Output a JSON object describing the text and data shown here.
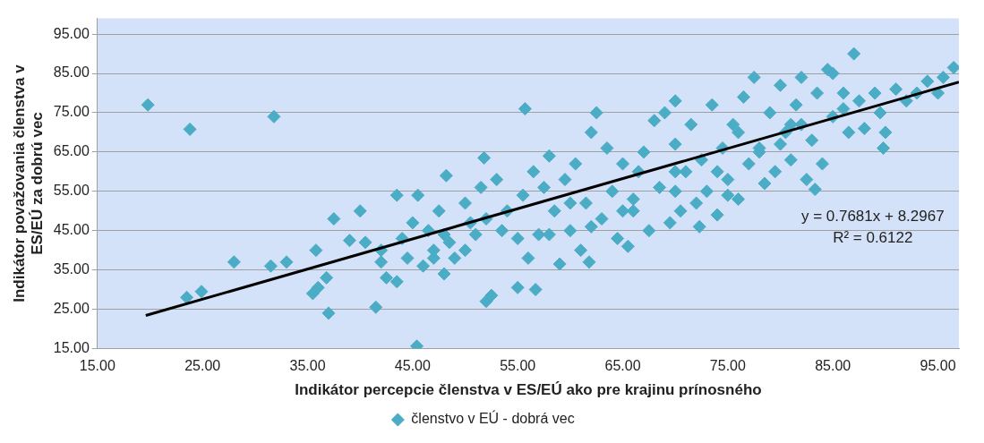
{
  "chart_data": {
    "type": "scatter",
    "xlabel": "Indikátor percepcie členstva v ES/EÚ ako pre krajinu prínosného",
    "ylabel": "Indikátor považovania členstva v ES/EÚ za dobrú vec",
    "annotations": [
      "y = 0.7681x + 8.2967",
      "R² = 0.6122"
    ],
    "xlim": [
      15,
      97
    ],
    "ylim": [
      15,
      99
    ],
    "xticks": [
      {
        "value": 15,
        "label": "15.00"
      },
      {
        "value": 25,
        "label": "25.00"
      },
      {
        "value": 35,
        "label": "35.00"
      },
      {
        "value": 45,
        "label": "45.00"
      },
      {
        "value": 55,
        "label": "55.00"
      },
      {
        "value": 65,
        "label": "65.00"
      },
      {
        "value": 75,
        "label": "75.00"
      },
      {
        "value": 85,
        "label": "85.00"
      },
      {
        "value": 95,
        "label": "95.00"
      }
    ],
    "yticks": [
      {
        "value": 15,
        "label": "15.00"
      },
      {
        "value": 25,
        "label": "25.00"
      },
      {
        "value": 35,
        "label": "35.00"
      },
      {
        "value": 45,
        "label": "45.00"
      },
      {
        "value": 55,
        "label": "55.00"
      },
      {
        "value": 65,
        "label": "65.00"
      },
      {
        "value": 75,
        "label": "75.00"
      },
      {
        "value": 85,
        "label": "85.00"
      },
      {
        "value": 95,
        "label": "95.00"
      }
    ],
    "grid": "y",
    "legend": "bottom",
    "marker": "diamond",
    "series": [
      {
        "name": "členstvo v EÚ - dobrá vec",
        "color": "#4bacc6",
        "x": [
          19.8,
          23.8,
          31.8,
          45.4,
          55.7,
          23.5,
          24.9,
          28,
          31.5,
          33,
          35.5,
          36,
          36.8,
          37,
          35.8,
          37.5,
          39,
          40.5,
          40,
          41.5,
          42,
          42.5,
          43.5,
          43.5,
          44,
          44.5,
          45,
          45.5,
          46,
          46.5,
          47,
          47.5,
          48,
          48.2,
          48.5,
          49,
          50,
          50.5,
          51,
          51.5,
          51.8,
          52,
          52.5,
          53,
          53.5,
          54,
          55,
          55.5,
          56,
          56.5,
          56.7,
          57,
          57.5,
          58,
          58.5,
          59,
          59.5,
          60,
          60.5,
          61,
          61.5,
          61.8,
          62,
          62.5,
          63,
          63.5,
          64,
          64.5,
          65,
          65.5,
          66,
          66.5,
          67,
          67.5,
          68,
          68.5,
          69,
          69.5,
          70,
          70,
          70.5,
          71,
          71.5,
          72,
          72.3,
          72.5,
          73,
          73.5,
          74,
          74.5,
          75,
          75.5,
          76,
          76.5,
          77,
          77.5,
          78,
          78.5,
          79,
          79.5,
          80,
          80.5,
          81,
          81.5,
          82,
          82.5,
          83,
          83.3,
          83.5,
          84,
          84.5,
          85,
          86,
          86.5,
          87,
          87.5,
          88,
          89,
          89.5,
          89.8,
          90,
          91,
          92,
          93,
          94,
          95,
          95.5,
          96.5,
          85,
          80,
          75,
          70,
          65,
          60,
          55,
          50,
          47,
          58,
          62,
          66,
          70,
          74,
          78,
          82,
          86,
          48,
          42,
          52,
          76,
          81
        ],
        "values": [
          77,
          70.8,
          74,
          15.6,
          76,
          28,
          29.5,
          37,
          36,
          37,
          29,
          30.5,
          33,
          24,
          40,
          48,
          42.5,
          42,
          50,
          25.5,
          40,
          33,
          32,
          54,
          43,
          38,
          47,
          54,
          36,
          45,
          40,
          50,
          34,
          59,
          42,
          38,
          52,
          47,
          44,
          56,
          63.5,
          27,
          28.5,
          58,
          45,
          50,
          30.5,
          54,
          38,
          60,
          30,
          44,
          56,
          64,
          50,
          36.5,
          58,
          45,
          62,
          40,
          52,
          37,
          70,
          75,
          48,
          66,
          55,
          43,
          62,
          41,
          53,
          60,
          65,
          45,
          73,
          56,
          75,
          47,
          78,
          67,
          50,
          60,
          72,
          52,
          46,
          63,
          55,
          77,
          49,
          66,
          58,
          72,
          53,
          79,
          62,
          84,
          66,
          57,
          75,
          60,
          82,
          70,
          63,
          77,
          84,
          58,
          68,
          55.5,
          80,
          62,
          86,
          74,
          80,
          70,
          90,
          78,
          71,
          80,
          75,
          66,
          70,
          81,
          78,
          80,
          83,
          80,
          84,
          86.5,
          85,
          67,
          54,
          60,
          50,
          52,
          43,
          40,
          38,
          44,
          46,
          50,
          55,
          60,
          65,
          72,
          76,
          44,
          37,
          48,
          70,
          72
        ]
      },
      {
        "type": "line",
        "color": "#000000",
        "marker": "none",
        "line_style": "solid",
        "x": [
          19.6,
          97
        ],
        "values": [
          23.4,
          82.8
        ]
      }
    ]
  }
}
